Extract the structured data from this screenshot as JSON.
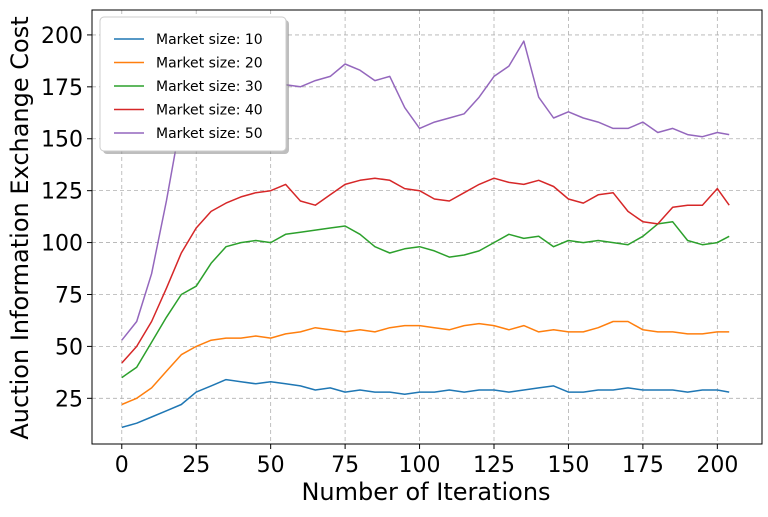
{
  "chart_data": {
    "type": "line",
    "title": "",
    "xlabel": "Number of Iterations",
    "ylabel": "Auction Information Exchange Cost",
    "xlim": [
      -10,
      215
    ],
    "ylim": [
      3,
      212
    ],
    "xticks": [
      0,
      25,
      50,
      75,
      100,
      125,
      150,
      175,
      200
    ],
    "yticks": [
      25,
      50,
      75,
      100,
      125,
      150,
      175,
      200
    ],
    "grid": true,
    "legend_position": "upper-left",
    "series": [
      {
        "name": "Market size: 10",
        "color": "#1f77b4",
        "x": [
          0,
          5,
          10,
          15,
          20,
          25,
          30,
          35,
          40,
          45,
          50,
          55,
          60,
          65,
          70,
          75,
          80,
          85,
          90,
          95,
          100,
          105,
          110,
          115,
          120,
          125,
          130,
          135,
          140,
          145,
          150,
          155,
          160,
          165,
          170,
          175,
          180,
          185,
          190,
          195,
          200,
          204
        ],
        "y": [
          11,
          13,
          16,
          19,
          22,
          28,
          31,
          34,
          33,
          32,
          33,
          32,
          31,
          29,
          30,
          28,
          29,
          28,
          28,
          27,
          28,
          28,
          29,
          28,
          29,
          29,
          28,
          29,
          30,
          31,
          28,
          28,
          29,
          29,
          30,
          29,
          29,
          29,
          28,
          29,
          29,
          28
        ]
      },
      {
        "name": "Market size: 20",
        "color": "#ff7f0e",
        "x": [
          0,
          5,
          10,
          15,
          20,
          25,
          30,
          35,
          40,
          45,
          50,
          55,
          60,
          65,
          70,
          75,
          80,
          85,
          90,
          95,
          100,
          105,
          110,
          115,
          120,
          125,
          130,
          135,
          140,
          145,
          150,
          155,
          160,
          165,
          170,
          175,
          180,
          185,
          190,
          195,
          200,
          204
        ],
        "y": [
          22,
          25,
          30,
          38,
          46,
          50,
          53,
          54,
          54,
          55,
          54,
          56,
          57,
          59,
          58,
          57,
          58,
          57,
          59,
          60,
          60,
          59,
          58,
          60,
          61,
          60,
          58,
          60,
          57,
          58,
          57,
          57,
          59,
          62,
          62,
          58,
          57,
          57,
          56,
          56,
          57,
          57
        ]
      },
      {
        "name": "Market size: 30",
        "color": "#2ca02c",
        "x": [
          0,
          5,
          10,
          15,
          20,
          25,
          30,
          35,
          40,
          45,
          50,
          55,
          60,
          65,
          70,
          75,
          80,
          85,
          90,
          95,
          100,
          105,
          110,
          115,
          120,
          125,
          130,
          135,
          140,
          145,
          150,
          155,
          160,
          165,
          170,
          175,
          180,
          185,
          190,
          195,
          200,
          204
        ],
        "y": [
          35,
          40,
          52,
          64,
          75,
          79,
          90,
          98,
          100,
          101,
          100,
          104,
          105,
          106,
          107,
          108,
          104,
          98,
          95,
          97,
          98,
          96,
          93,
          94,
          96,
          100,
          104,
          102,
          103,
          98,
          101,
          100,
          101,
          100,
          99,
          103,
          109,
          110,
          101,
          99,
          100,
          103
        ]
      },
      {
        "name": "Market size: 40",
        "color": "#d62728",
        "x": [
          0,
          5,
          10,
          15,
          20,
          25,
          30,
          35,
          40,
          45,
          50,
          55,
          60,
          65,
          70,
          75,
          80,
          85,
          90,
          95,
          100,
          105,
          110,
          115,
          120,
          125,
          130,
          135,
          140,
          145,
          150,
          155,
          160,
          165,
          170,
          175,
          180,
          185,
          190,
          195,
          200,
          204
        ],
        "y": [
          42,
          50,
          62,
          78,
          95,
          107,
          115,
          119,
          122,
          124,
          125,
          128,
          120,
          118,
          123,
          128,
          130,
          131,
          130,
          126,
          125,
          121,
          120,
          124,
          128,
          131,
          129,
          128,
          130,
          127,
          121,
          119,
          123,
          124,
          115,
          110,
          109,
          117,
          118,
          118,
          126,
          118
        ]
      },
      {
        "name": "Market size: 50",
        "color": "#9467bd",
        "x": [
          0,
          5,
          10,
          15,
          20,
          25,
          30,
          35,
          40,
          45,
          50,
          55,
          60,
          65,
          70,
          75,
          80,
          85,
          90,
          95,
          100,
          105,
          110,
          115,
          120,
          125,
          130,
          135,
          140,
          145,
          150,
          155,
          160,
          165,
          170,
          175,
          180,
          185,
          190,
          195,
          200,
          204
        ],
        "y": [
          53,
          62,
          85,
          120,
          160,
          168,
          180,
          184,
          183,
          180,
          178,
          176,
          175,
          178,
          180,
          186,
          183,
          178,
          180,
          165,
          155,
          158,
          160,
          162,
          170,
          180,
          185,
          197,
          170,
          160,
          163,
          160,
          158,
          155,
          155,
          158,
          153,
          155,
          152,
          151,
          153,
          152
        ]
      }
    ]
  }
}
